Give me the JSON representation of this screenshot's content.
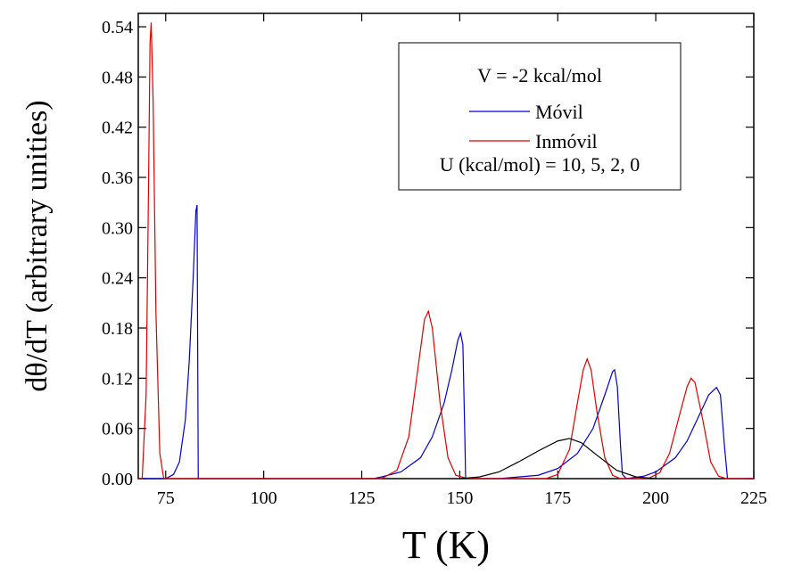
{
  "chart_data": {
    "type": "line",
    "x_label": "T (K)",
    "y_label": "dθ/dT (arbitrary unities)",
    "legend_title": "V = -2 kcal/mol",
    "legend_note": "U (kcal/mol) = 10, 5, 2, 0",
    "xlim": [
      68,
      225
    ],
    "ylim": [
      0,
      0.556
    ],
    "xticks": [
      75,
      100,
      125,
      150,
      175,
      200,
      225
    ],
    "yticks": [
      {
        "value": 0,
        "label": "0.00"
      },
      0.06,
      0.12,
      0.18,
      0.24,
      {
        "value": 0.3,
        "label": "0.30"
      },
      0.36,
      0.42,
      0.48,
      0.54
    ],
    "series": [
      {
        "name": "Móvil",
        "color": "#0000cc",
        "x": [
          68,
          75,
          77,
          78.5,
          80,
          81,
          82,
          82.7,
          83,
          83.3,
          128,
          130,
          135,
          140,
          143,
          146,
          148,
          149.5,
          150.2,
          150.8,
          151.3,
          151.5,
          160,
          170,
          175,
          180,
          184,
          187,
          189,
          189.5,
          190.2,
          191,
          191.5,
          192.5,
          197,
          200,
          205,
          208,
          211,
          213.5,
          215.5,
          216.5,
          217.5,
          218.3,
          225
        ],
        "values": [
          0,
          0,
          0.005,
          0.02,
          0.07,
          0.14,
          0.24,
          0.32,
          0.327,
          0,
          0,
          0.002,
          0.008,
          0.025,
          0.05,
          0.09,
          0.13,
          0.165,
          0.174,
          0.16,
          0.05,
          0,
          0,
          0.004,
          0.012,
          0.03,
          0.06,
          0.1,
          0.128,
          0.13,
          0.11,
          0.04,
          0.005,
          0,
          0.003,
          0.008,
          0.025,
          0.045,
          0.075,
          0.1,
          0.109,
          0.1,
          0.04,
          0,
          0
        ]
      },
      {
        "name": "Inmóvil",
        "color": "#dd0000",
        "x": [
          68,
          69,
          70,
          70.5,
          71,
          71.3,
          71.8,
          72.5,
          73.5,
          74.5,
          130,
          134,
          137,
          139,
          141,
          142,
          143,
          145,
          147,
          149,
          152,
          172,
          175,
          178,
          180,
          181.5,
          182.5,
          183.5,
          185,
          187,
          189,
          191,
          198,
          201,
          203.5,
          206,
          208,
          209,
          210,
          212,
          214,
          216,
          218,
          225
        ],
        "values": [
          0,
          0,
          0.1,
          0.3,
          0.52,
          0.545,
          0.45,
          0.2,
          0.03,
          0,
          0,
          0.01,
          0.05,
          0.12,
          0.19,
          0.2,
          0.18,
          0.09,
          0.025,
          0.004,
          0,
          0,
          0.005,
          0.035,
          0.09,
          0.13,
          0.143,
          0.13,
          0.08,
          0.025,
          0.004,
          0,
          0,
          0.007,
          0.03,
          0.075,
          0.11,
          0.12,
          0.115,
          0.07,
          0.02,
          0.003,
          0,
          0
        ]
      },
      {
        "color": "#000000",
        "x": [
          150,
          155,
          160,
          165,
          170,
          175,
          178,
          181,
          185,
          190,
          195,
          200
        ],
        "values": [
          0,
          0.002,
          0.008,
          0.02,
          0.033,
          0.045,
          0.048,
          0.043,
          0.028,
          0.01,
          0.002,
          0
        ]
      }
    ]
  }
}
